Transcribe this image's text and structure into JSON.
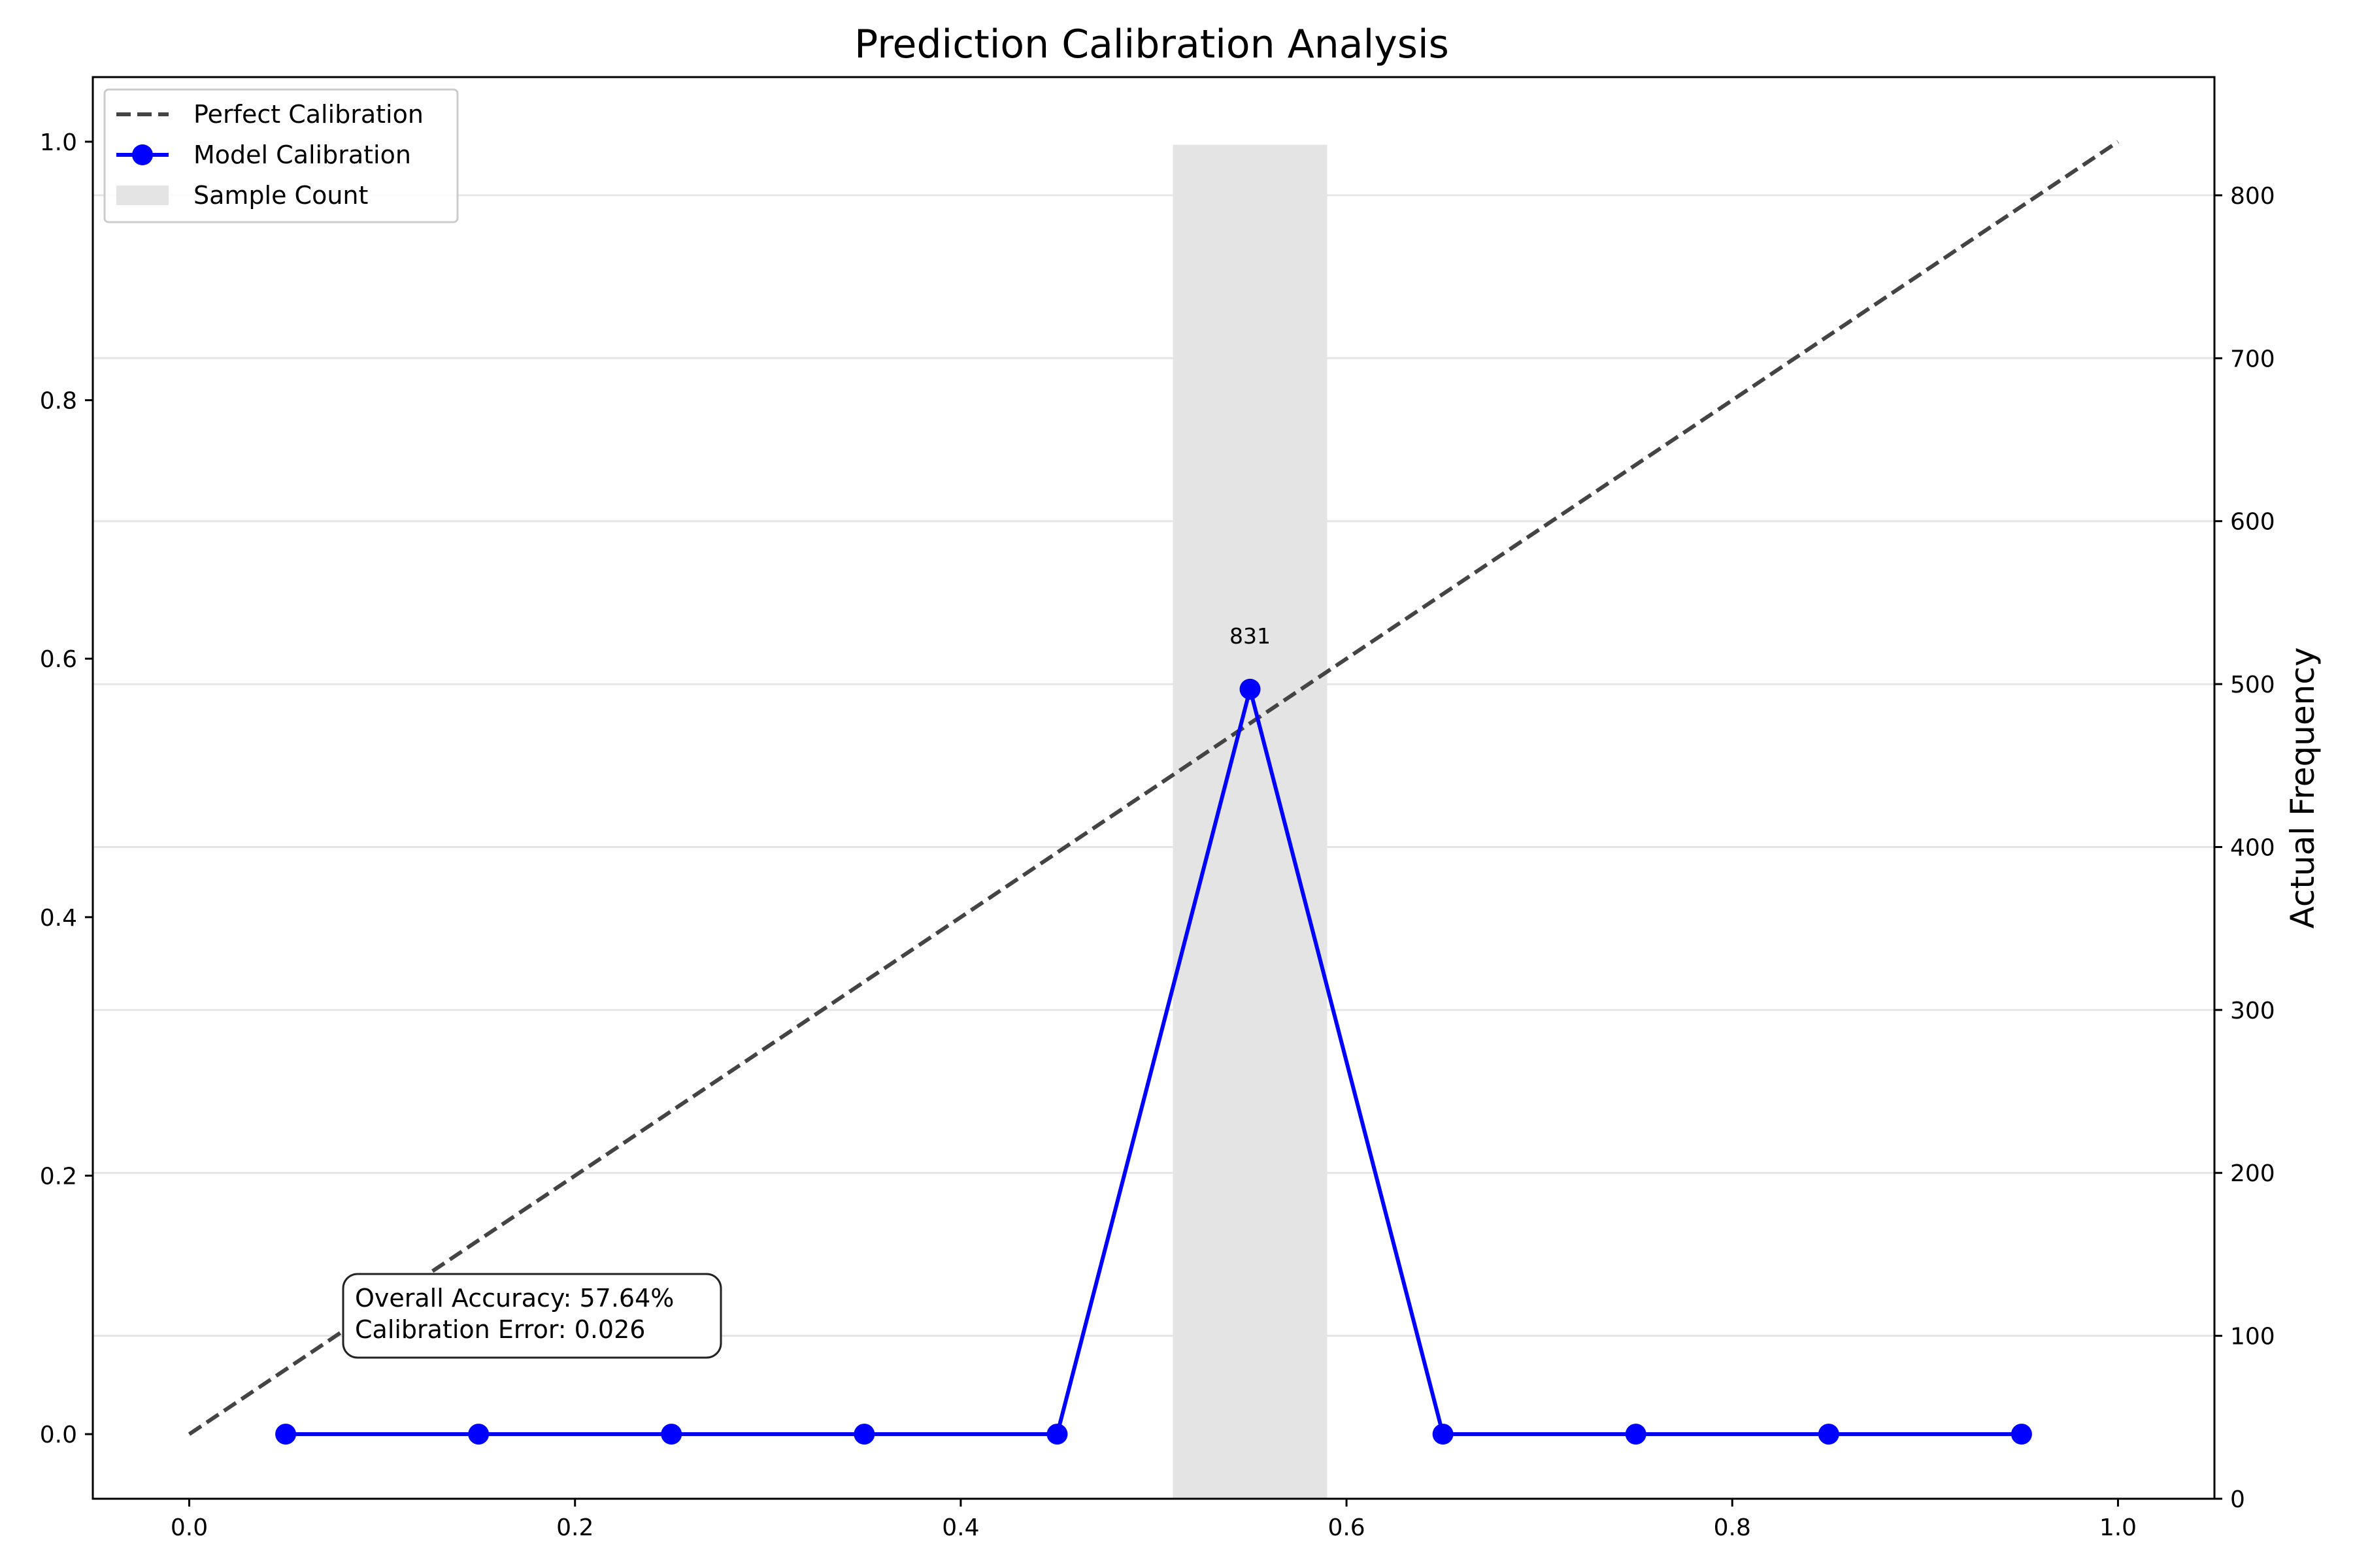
{
  "chart_data": {
    "type": "line",
    "title": "Prediction Calibration Analysis",
    "xlabel": "",
    "ylabel": "",
    "y2label": "Actual Frequency",
    "xlim": [
      -0.05,
      1.05
    ],
    "ylim": [
      -0.05,
      1.05
    ],
    "y2lim": [
      0,
      872.55
    ],
    "x_ticks": [
      "0.0",
      "0.2",
      "0.4",
      "0.6",
      "0.8",
      "1.0"
    ],
    "x_tick_values": [
      0.0,
      0.2,
      0.4,
      0.6,
      0.8,
      1.0
    ],
    "y_ticks": [
      "0.0",
      "0.2",
      "0.4",
      "0.6",
      "0.8",
      "1.0"
    ],
    "y_tick_values": [
      0.0,
      0.2,
      0.4,
      0.6,
      0.8,
      1.0
    ],
    "y2_ticks": [
      "0",
      "100",
      "200",
      "300",
      "400",
      "500",
      "600",
      "700",
      "800"
    ],
    "y2_tick_values": [
      0,
      100,
      200,
      300,
      400,
      500,
      600,
      700,
      800
    ],
    "grid": "horizontal",
    "legend_position": "top-left",
    "series": [
      {
        "name": "Perfect Calibration",
        "kind": "line",
        "style": "dashed",
        "color": "#444444",
        "x": [
          0.0,
          1.0
        ],
        "y": [
          0.0,
          1.0
        ]
      },
      {
        "name": "Model Calibration",
        "kind": "line-marker",
        "color": "#0000ff",
        "x": [
          0.05,
          0.15,
          0.25,
          0.35,
          0.45,
          0.55,
          0.65,
          0.75,
          0.85,
          0.95
        ],
        "y": [
          0.0,
          0.0,
          0.0,
          0.0,
          0.0,
          0.5764,
          0.0,
          0.0,
          0.0,
          0.0
        ]
      },
      {
        "name": "Sample Count",
        "kind": "bar",
        "axis": "right",
        "color": "#e4e4e4",
        "bar_width": 0.08,
        "x": [
          0.05,
          0.15,
          0.25,
          0.35,
          0.45,
          0.55,
          0.65,
          0.75,
          0.85,
          0.95
        ],
        "values": [
          0,
          0,
          0,
          0,
          0,
          831,
          0,
          0,
          0,
          0
        ]
      }
    ],
    "data_labels": [
      {
        "text": "831",
        "x": 0.55,
        "y": 0.5764
      }
    ],
    "annotation": {
      "line1": "Overall Accuracy: 57.64%",
      "line2": "Calibration Error: 0.026"
    }
  }
}
